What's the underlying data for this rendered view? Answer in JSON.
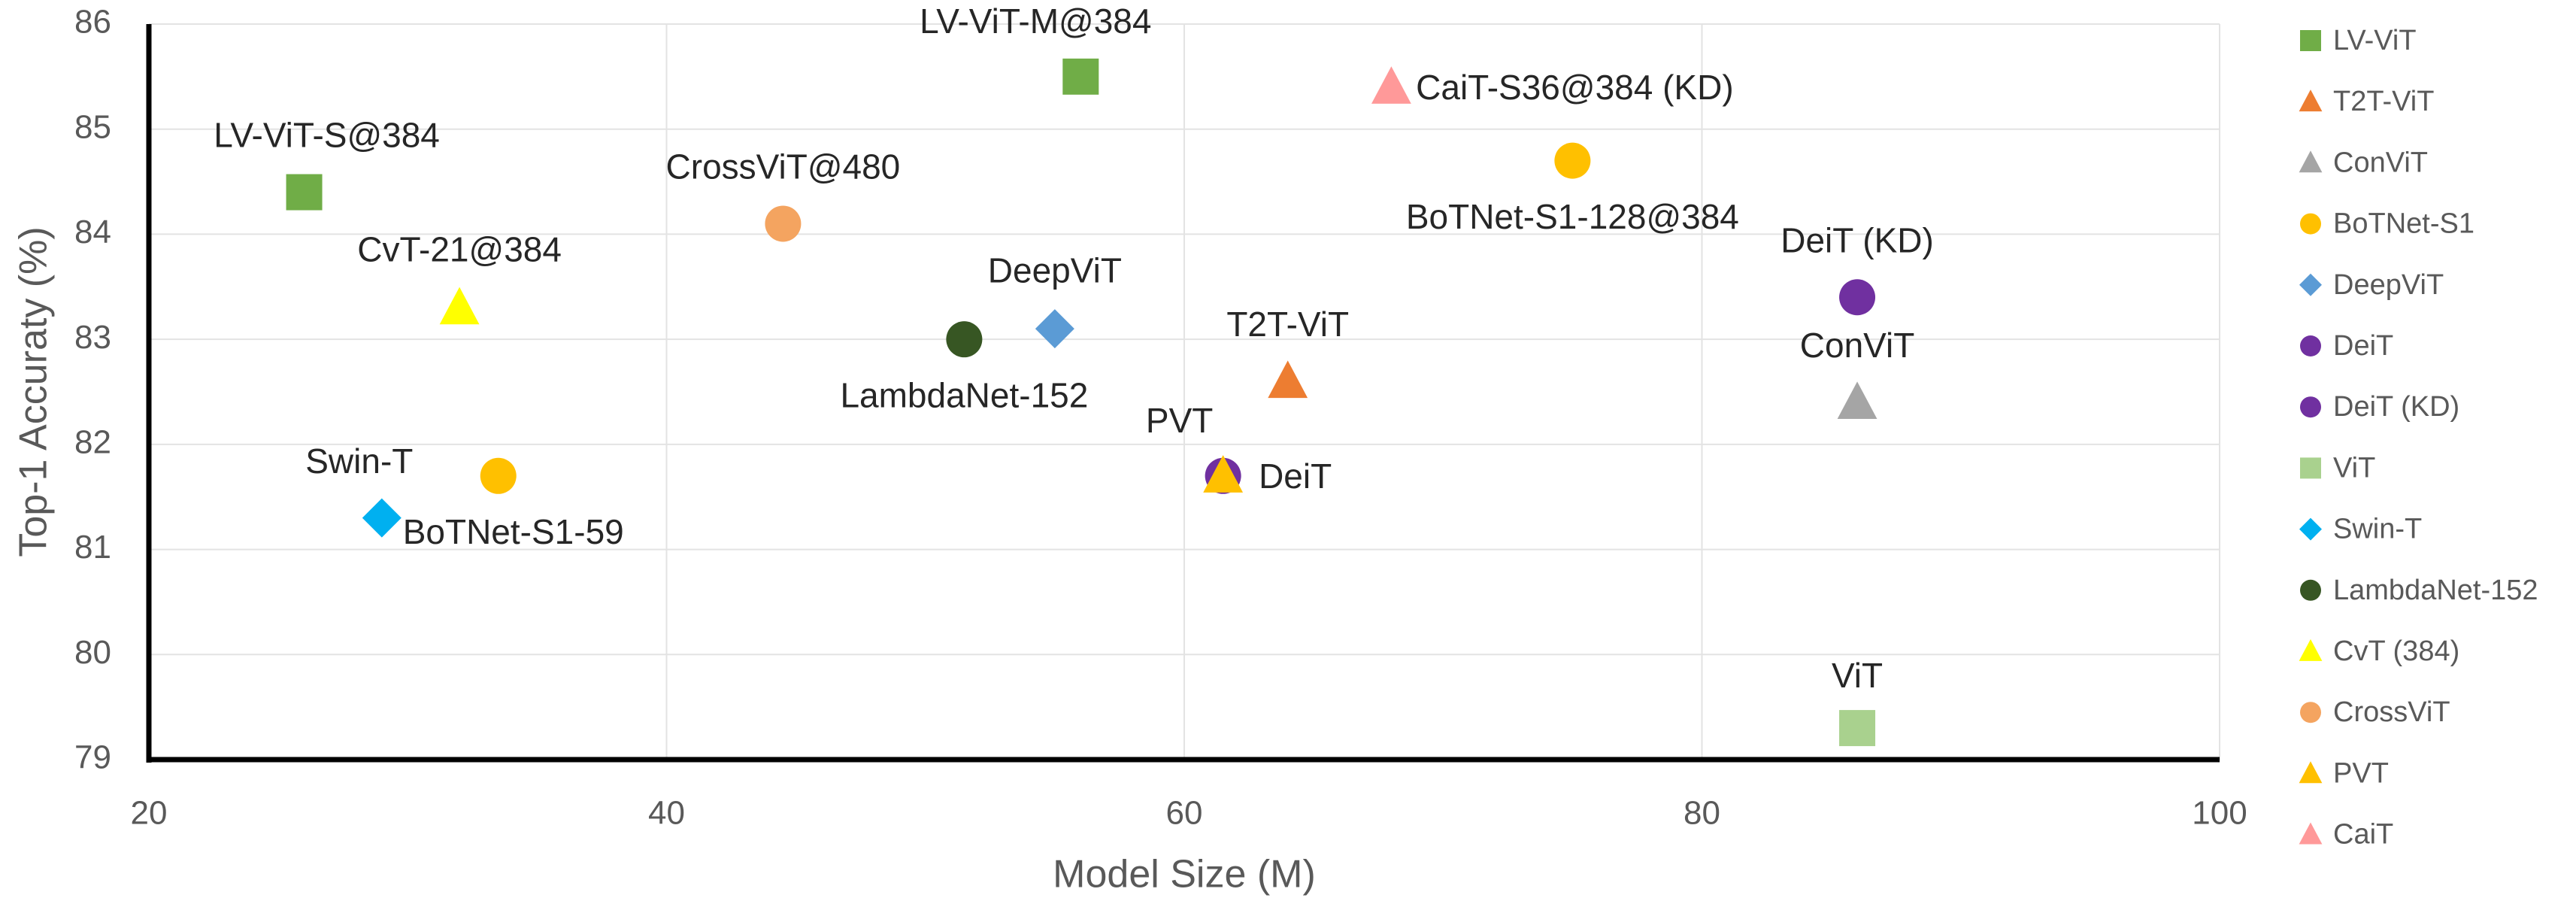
{
  "chart_data": {
    "type": "scatter",
    "title": "",
    "xlabel": "Model Size (M)",
    "ylabel": "Top-1 Accuraty (%)",
    "xlim": [
      20,
      100
    ],
    "ylim": [
      79,
      86
    ],
    "xticks": [
      20,
      40,
      60,
      80,
      100
    ],
    "yticks": [
      79,
      80,
      81,
      82,
      83,
      84,
      85,
      86
    ],
    "grid": true,
    "legend_position": "right",
    "series": [
      {
        "name": "LV-ViT",
        "marker": "square",
        "color": "#70AD47",
        "points": [
          {
            "x": 26,
            "y": 84.4,
            "label": "LV-ViT-S@384"
          },
          {
            "x": 56,
            "y": 85.5,
            "label": "LV-ViT-M@384"
          }
        ]
      },
      {
        "name": "T2T-ViT",
        "marker": "triangle",
        "color": "#ED7D31",
        "points": [
          {
            "x": 64,
            "y": 82.6,
            "label": "T2T-ViT"
          }
        ]
      },
      {
        "name": "ConViT",
        "marker": "triangle",
        "color": "#A5A5A5",
        "points": [
          {
            "x": 86,
            "y": 82.4,
            "label": "ConViT"
          }
        ]
      },
      {
        "name": "BoTNet-S1",
        "marker": "circle",
        "color": "#FFC000",
        "points": [
          {
            "x": 33.5,
            "y": 81.7,
            "label": "BoTNet-S1-59"
          },
          {
            "x": 75,
            "y": 84.7,
            "label": "BoTNet-S1-128@384"
          }
        ]
      },
      {
        "name": "DeepViT",
        "marker": "diamond",
        "color": "#5B9BD5",
        "points": [
          {
            "x": 55,
            "y": 83.1,
            "label": "DeepViT"
          }
        ]
      },
      {
        "name": "DeiT",
        "marker": "circle",
        "color": "#7030A0",
        "points": [
          {
            "x": 61.5,
            "y": 81.7,
            "label": "DeiT"
          }
        ]
      },
      {
        "name": "DeiT (KD)",
        "marker": "circle",
        "color": "#7030A0",
        "points": [
          {
            "x": 86,
            "y": 83.4,
            "label": "DeiT (KD)"
          }
        ]
      },
      {
        "name": "ViT",
        "marker": "square",
        "color": "#A9D18E",
        "points": [
          {
            "x": 86,
            "y": 79.3,
            "label": "ViT"
          }
        ]
      },
      {
        "name": "Swin-T",
        "marker": "diamond",
        "color": "#00B0F0",
        "points": [
          {
            "x": 29,
            "y": 81.3,
            "label": "Swin-T"
          }
        ]
      },
      {
        "name": "LambdaNet-152",
        "marker": "circle",
        "color": "#375623",
        "points": [
          {
            "x": 51.5,
            "y": 83.0,
            "label": "LambdaNet-152"
          }
        ]
      },
      {
        "name": "CvT (384)",
        "marker": "triangle",
        "color": "#FFFF00",
        "points": [
          {
            "x": 32,
            "y": 83.3,
            "label": "CvT-21@384"
          }
        ]
      },
      {
        "name": "CrossViT",
        "marker": "circle",
        "color": "#F4A460",
        "points": [
          {
            "x": 44.5,
            "y": 84.1,
            "label": "CrossViT@480"
          }
        ]
      },
      {
        "name": "PVT",
        "marker": "triangle",
        "color": "#FFC000",
        "points": [
          {
            "x": 61.5,
            "y": 81.7,
            "label": "PVT"
          }
        ]
      },
      {
        "name": "CaiT",
        "marker": "triangle",
        "color": "#FF9999",
        "points": [
          {
            "x": 68,
            "y": 85.4,
            "label": "CaiT-S36@384 (KD)"
          }
        ]
      }
    ]
  }
}
